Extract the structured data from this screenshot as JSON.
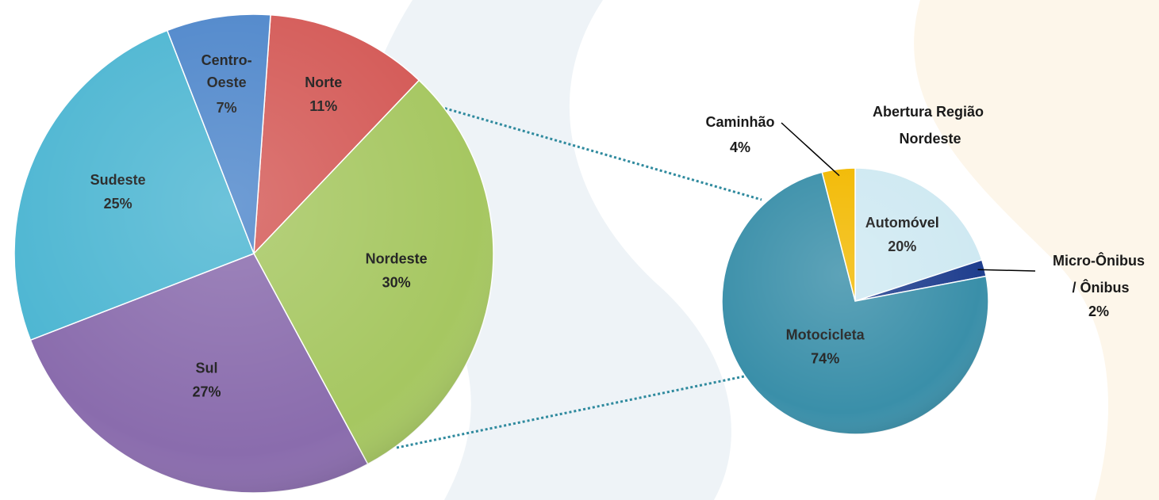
{
  "chart_data": [
    {
      "type": "pie",
      "categories": [
        "Norte",
        "Nordeste",
        "Sul",
        "Sudeste",
        "Centro-Oeste"
      ],
      "values": [
        11,
        30,
        27,
        25,
        7
      ],
      "value_labels": [
        "11%",
        "30%",
        "27%",
        "25%",
        "7%"
      ],
      "colors": [
        "#d45a57",
        "#a6c761",
        "#8a6cad",
        "#4db6d2",
        "#4f87cb"
      ]
    },
    {
      "type": "pie",
      "title": "Abertura Região Nordeste",
      "categories": [
        "Automóvel",
        "Micro-Ônibus / Ônibus",
        "Motocicleta",
        "Caminhão"
      ],
      "values": [
        20,
        2,
        74,
        4
      ],
      "value_labels": [
        "20%",
        "2%",
        "74%",
        "4%"
      ],
      "colors": [
        "#cfe9f2",
        "#1f3e8e",
        "#3a8fa9",
        "#f2b900"
      ]
    }
  ]
}
